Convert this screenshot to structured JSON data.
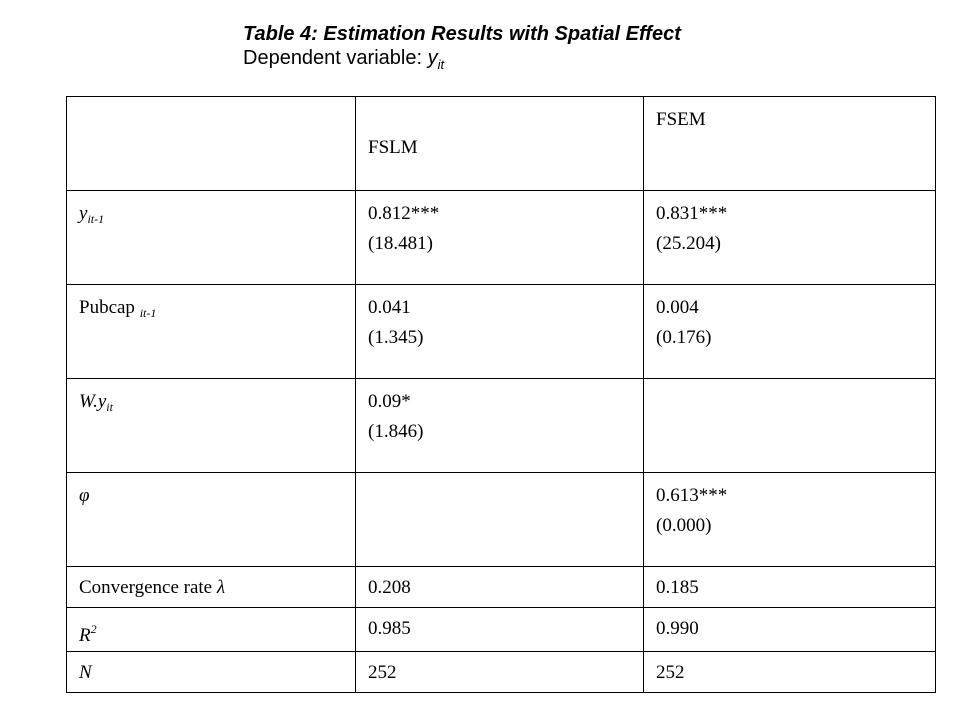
{
  "header": {
    "title": "Table 4: Estimation Results with Spatial Effect",
    "subtitle_prefix": "Dependent  variable: ",
    "subtitle_var": "y",
    "subtitle_sub": "it"
  },
  "table": {
    "columns": [
      "",
      "FSLM",
      "FSEM"
    ],
    "rows": [
      {
        "label_main": "y",
        "label_sub": "it-1",
        "fslm_coef": "0.812***",
        "fslm_t": "(18.481)",
        "fsem_coef": "0.831***",
        "fsem_t": "(25.204)"
      },
      {
        "label_main": "Pubcap ",
        "label_sub": "it-1",
        "fslm_coef": "0.041",
        "fslm_t": "(1.345)",
        "fsem_coef": "0.004",
        "fsem_t": "(0.176)"
      },
      {
        "label_main": "W.y",
        "label_sub": "it",
        "fslm_coef": "0.09*",
        "fslm_t": "(1.846)",
        "fsem_coef": "",
        "fsem_t": ""
      },
      {
        "label_main": "φ",
        "fslm_coef": "",
        "fslm_t": "",
        "fsem_coef": "0.613***",
        "fsem_t": "(0.000)"
      },
      {
        "label_prefix": "Convergence rate ",
        "label_var": "λ",
        "fslm": "0.208",
        "fsem": "0.185"
      },
      {
        "label_main": "R",
        "label_sup": "2",
        "fslm": "0.985",
        "fsem": "0.990"
      },
      {
        "label_main": "N",
        "fslm": "252",
        "fsem": "252"
      }
    ]
  }
}
